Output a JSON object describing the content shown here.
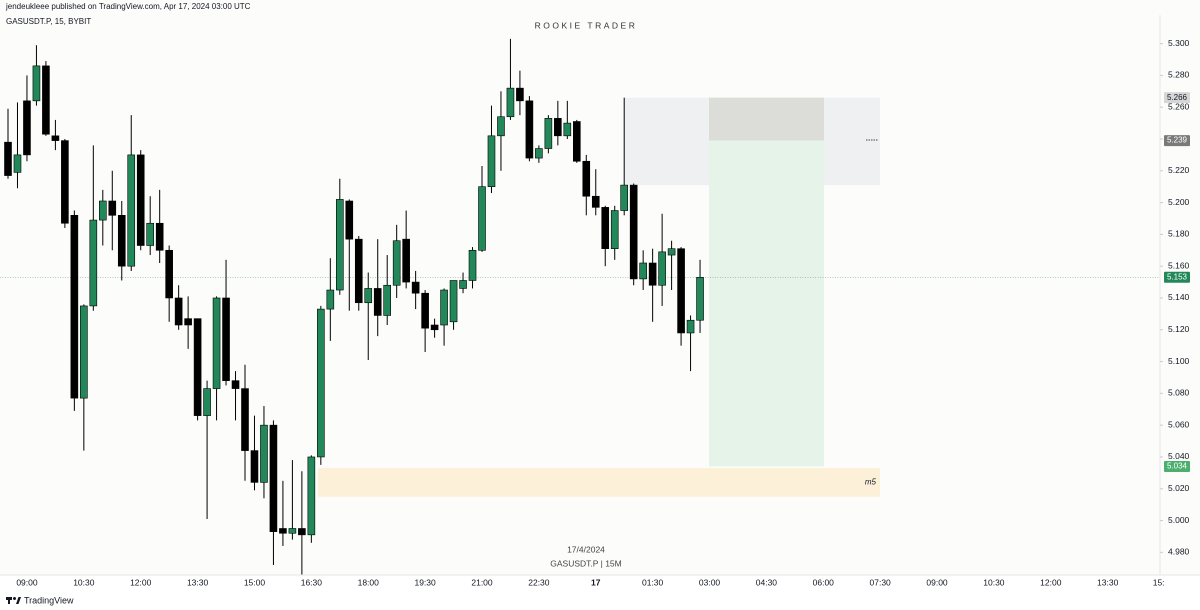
{
  "header": {
    "publisher": "jendeukleee published on TradingView.com, Apr 17, 2024 03:00 UTC",
    "symbol": "GASUSDT.P, 15, BYBIT",
    "watermark": "ROOKIE TRADER",
    "footer_date": "17/4/2024",
    "footer_symbol": "GASUSDT.P | 15M",
    "brand": "TradingView"
  },
  "chart_data": {
    "type": "candlestick",
    "x_labels": [
      "09:00",
      "10:30",
      "12:00",
      "13:30",
      "15:00",
      "16:30",
      "18:00",
      "19:30",
      "21:00",
      "22:30",
      "17",
      "01:30",
      "03:00",
      "04:30",
      "06:00",
      "07:30",
      "09:00",
      "10:30",
      "12:00",
      "13:30",
      "15:"
    ],
    "open": [
      5.238,
      5.219,
      5.264,
      5.264,
      5.286,
      5.242,
      5.239,
      5.192,
      5.077,
      5.135,
      5.189,
      5.201,
      5.192,
      5.16,
      5.23,
      5.173,
      5.187,
      5.17,
      5.14,
      5.127,
      5.127,
      5.066,
      5.083,
      5.14,
      5.088,
      5.083,
      5.044,
      5.024,
      5.06,
      4.995,
      4.992,
      4.995,
      4.991,
      5.04,
      5.133,
      5.145,
      5.201,
      5.177,
      5.137,
      5.146,
      5.129,
      5.148,
      5.177,
      5.15,
      5.143,
      5.123,
      5.123,
      5.125,
      5.146,
      5.151,
      5.17,
      5.21,
      5.242,
      5.254,
      5.272,
      5.264,
      5.228,
      5.234,
      5.253,
      5.242,
      5.251,
      5.226,
      5.204,
      5.197,
      5.171,
      5.195,
      5.211,
      5.152,
      5.162,
      5.148,
      5.167,
      5.171,
      5.118,
      5.126
    ],
    "high": [
      5.259,
      5.263,
      5.28,
      5.299,
      5.289,
      5.252,
      5.24,
      5.195,
      5.136,
      5.236,
      5.208,
      5.22,
      5.201,
      5.255,
      5.233,
      5.204,
      5.208,
      5.173,
      5.148,
      5.141,
      5.127,
      5.088,
      5.141,
      5.164,
      5.094,
      5.098,
      5.066,
      5.072,
      5.063,
      5.025,
      5.038,
      5.031,
      5.041,
      5.135,
      5.165,
      5.215,
      5.202,
      5.179,
      5.156,
      5.177,
      5.167,
      5.186,
      5.195,
      5.157,
      5.145,
      5.127,
      5.146,
      5.151,
      5.156,
      5.172,
      5.223,
      5.261,
      5.27,
      5.303,
      5.283,
      5.267,
      5.236,
      5.255,
      5.264,
      5.264,
      5.252,
      5.23,
      5.221,
      5.198,
      5.198,
      5.266,
      5.212,
      5.17,
      5.171,
      5.193,
      5.176,
      5.172,
      5.129,
      5.164
    ],
    "low": [
      5.215,
      5.209,
      5.226,
      5.261,
      5.242,
      5.233,
      5.184,
      5.069,
      5.044,
      5.132,
      5.173,
      5.17,
      5.151,
      5.157,
      5.17,
      5.167,
      5.162,
      5.125,
      5.12,
      5.108,
      5.063,
      5.001,
      5.063,
      5.085,
      5.063,
      5.025,
      5.019,
      5.014,
      4.972,
      4.984,
      4.988,
      4.965,
      4.986,
      5.035,
      5.113,
      5.142,
      5.132,
      5.132,
      5.101,
      5.116,
      5.123,
      5.14,
      5.146,
      5.133,
      5.106,
      5.115,
      5.11,
      5.12,
      5.143,
      5.146,
      5.169,
      5.206,
      5.22,
      5.252,
      5.255,
      5.226,
      5.225,
      5.231,
      5.236,
      5.24,
      5.225,
      5.192,
      5.192,
      5.16,
      5.164,
      5.192,
      5.148,
      5.145,
      5.125,
      5.135,
      5.145,
      5.11,
      5.094,
      5.118
    ],
    "close": [
      5.217,
      5.23,
      5.23,
      5.286,
      5.243,
      5.239,
      5.187,
      5.077,
      5.135,
      5.189,
      5.201,
      5.192,
      5.16,
      5.23,
      5.173,
      5.187,
      5.17,
      5.14,
      5.123,
      5.123,
      5.066,
      5.083,
      5.14,
      5.088,
      5.083,
      5.044,
      5.024,
      5.06,
      4.993,
      4.992,
      4.995,
      4.991,
      5.04,
      5.133,
      5.145,
      5.202,
      5.177,
      5.137,
      5.146,
      5.129,
      5.148,
      5.176,
      5.15,
      5.143,
      5.121,
      5.12,
      5.145,
      5.151,
      5.151,
      5.17,
      5.21,
      5.242,
      5.254,
      5.272,
      5.264,
      5.228,
      5.234,
      5.253,
      5.242,
      5.25,
      5.226,
      5.204,
      5.197,
      5.171,
      5.195,
      5.211,
      5.152,
      5.162,
      5.148,
      5.169,
      5.171,
      5.118,
      5.126,
      5.153
    ],
    "up_color": "#22885a",
    "down_color": "#000000",
    "ylim": [
      4.967,
      5.318
    ],
    "yticks": [
      {
        "value": 5.3,
        "label": "5.300"
      },
      {
        "value": 5.28,
        "label": "5.280"
      },
      {
        "value": 5.26,
        "label": "5.260"
      },
      {
        "value": 5.24,
        "label": "5.240"
      },
      {
        "value": 5.22,
        "label": "5.220"
      },
      {
        "value": 5.2,
        "label": "5.200"
      },
      {
        "value": 5.18,
        "label": "5.180"
      },
      {
        "value": 5.16,
        "label": "5.160"
      },
      {
        "value": 5.14,
        "label": "5.140"
      },
      {
        "value": 5.12,
        "label": "5.120"
      },
      {
        "value": 5.1,
        "label": "5.100"
      },
      {
        "value": 5.08,
        "label": "5.080"
      },
      {
        "value": 5.06,
        "label": "5.060"
      },
      {
        "value": 5.04,
        "label": "5.040"
      },
      {
        "value": 5.02,
        "label": "5.020"
      },
      {
        "value": 5.0,
        "label": "5.000"
      },
      {
        "value": 4.98,
        "label": "4.980"
      }
    ],
    "zones": [
      {
        "top": 5.266,
        "bottom": 5.211,
        "color": "#eff0f1"
      },
      {
        "top": 5.266,
        "bottom": 5.239,
        "color": "#dcdcd9"
      },
      {
        "top": 5.239,
        "bottom": 5.034,
        "color": "#e6f3e8"
      },
      {
        "top": 5.033,
        "bottom": 5.015,
        "color": "#fcf1d8",
        "label": "m5"
      }
    ],
    "price_labels": [
      {
        "value": 5.266,
        "color": "#d6d6d6",
        "text_color": "#131722"
      },
      {
        "value": 5.239,
        "color": "#7a7a7a",
        "text_color": "#ffffff"
      },
      {
        "value": 5.153,
        "color": "#22885a",
        "text_color": "#ffffff"
      },
      {
        "value": 5.034,
        "color": "#4caf6e",
        "text_color": "#ffffff"
      }
    ],
    "last_price": 5.153
  }
}
